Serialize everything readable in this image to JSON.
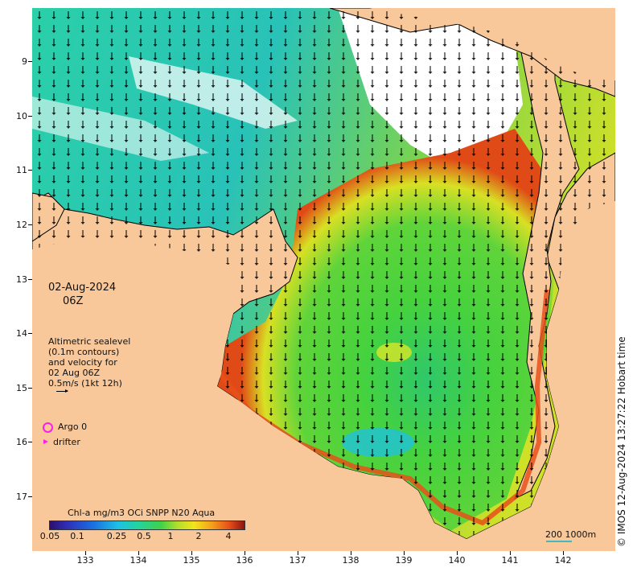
{
  "axes": {
    "y_labels": [
      "9",
      "10",
      "11",
      "12",
      "13",
      "14",
      "15",
      "16",
      "17"
    ],
    "x_labels": [
      "133",
      "134",
      "135",
      "136",
      "137",
      "138",
      "139",
      "140",
      "141",
      "142"
    ]
  },
  "date_line1": "02-Aug-2024",
  "date_line2": "06Z",
  "altimetry_lines": [
    "Altimetric sealevel",
    "(0.1m contours)",
    "and velocity for",
    "02 Aug 06Z",
    "0.5m/s (1kt 12h)"
  ],
  "legend": {
    "argo": "Argo 0",
    "drifter": "drifter",
    "argo_color": "#ff1ee6"
  },
  "colorbar": {
    "title": "Chl-a mg/m3 OCi SNPP N20 Aqua",
    "ticks": [
      "0.05",
      "0.1",
      "0.25",
      "0.5",
      "1",
      "2",
      "4"
    ]
  },
  "scale_text": "200  1000m",
  "credit": "© IMOS 12-Aug-2024 13:27:22 Hobart time",
  "colors": {
    "land": "#f8c89a",
    "coast": "#000000",
    "ocean_low": "#1ec0e6",
    "ocean_mid": "#3fd24a",
    "ocean_high": "#e8501a"
  }
}
